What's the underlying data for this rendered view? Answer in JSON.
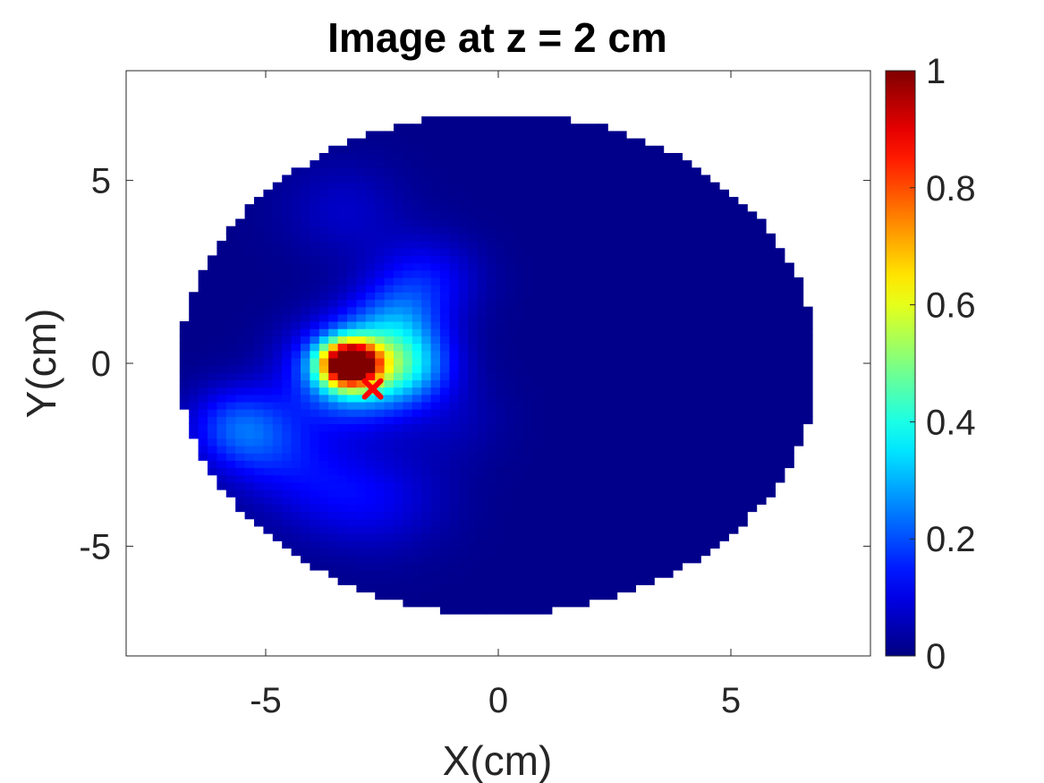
{
  "chart_data": {
    "type": "heatmap",
    "title": "Image at z = 2 cm",
    "xlabel": "X(cm)",
    "ylabel": "Y(cm)",
    "xlim": [
      -8,
      8
    ],
    "ylim": [
      -8,
      8
    ],
    "xticks": [
      -5,
      0,
      5
    ],
    "yticks": [
      5,
      0,
      -5
    ],
    "colorbar": {
      "colormap": "jet",
      "range": [
        0,
        1
      ],
      "ticks": [
        "0",
        "0.2",
        "0.4",
        "0.6",
        "0.8",
        "1"
      ]
    },
    "imaging_region": {
      "shape": "circle",
      "center": [
        0,
        0
      ],
      "radius": 6.85,
      "pixel_size": 0.2
    },
    "hotspots": [
      {
        "x": -3.2,
        "y": 0.0,
        "peak": 1.0,
        "sigma": 0.42
      },
      {
        "x": -3.1,
        "y": -0.2,
        "peak": 0.35,
        "sigma": 0.9
      },
      {
        "x": -2.0,
        "y": 0.0,
        "peak": 0.25,
        "sigma": 0.7
      },
      {
        "x": -2.2,
        "y": 1.2,
        "peak": 0.15,
        "sigma": 0.7
      },
      {
        "x": -1.6,
        "y": 2.3,
        "peak": 0.12,
        "sigma": 0.8
      },
      {
        "x": -5.6,
        "y": -1.7,
        "peak": 0.17,
        "sigma": 0.75
      },
      {
        "x": -4.8,
        "y": -2.4,
        "peak": 0.1,
        "sigma": 0.9
      },
      {
        "x": -3.3,
        "y": 4.2,
        "peak": 0.06,
        "sigma": 0.9
      },
      {
        "x": -2.5,
        "y": -3.7,
        "peak": 0.08,
        "sigma": 1.0
      },
      {
        "x": -3.7,
        "y": -3.5,
        "peak": 0.06,
        "sigma": 0.9
      },
      {
        "x": -1.0,
        "y": -1.5,
        "peak": 0.04,
        "sigma": 0.8
      }
    ],
    "marker": {
      "x": -2.7,
      "y": -0.7,
      "symbol": "x",
      "color": "#ff0000"
    },
    "grid": false
  }
}
